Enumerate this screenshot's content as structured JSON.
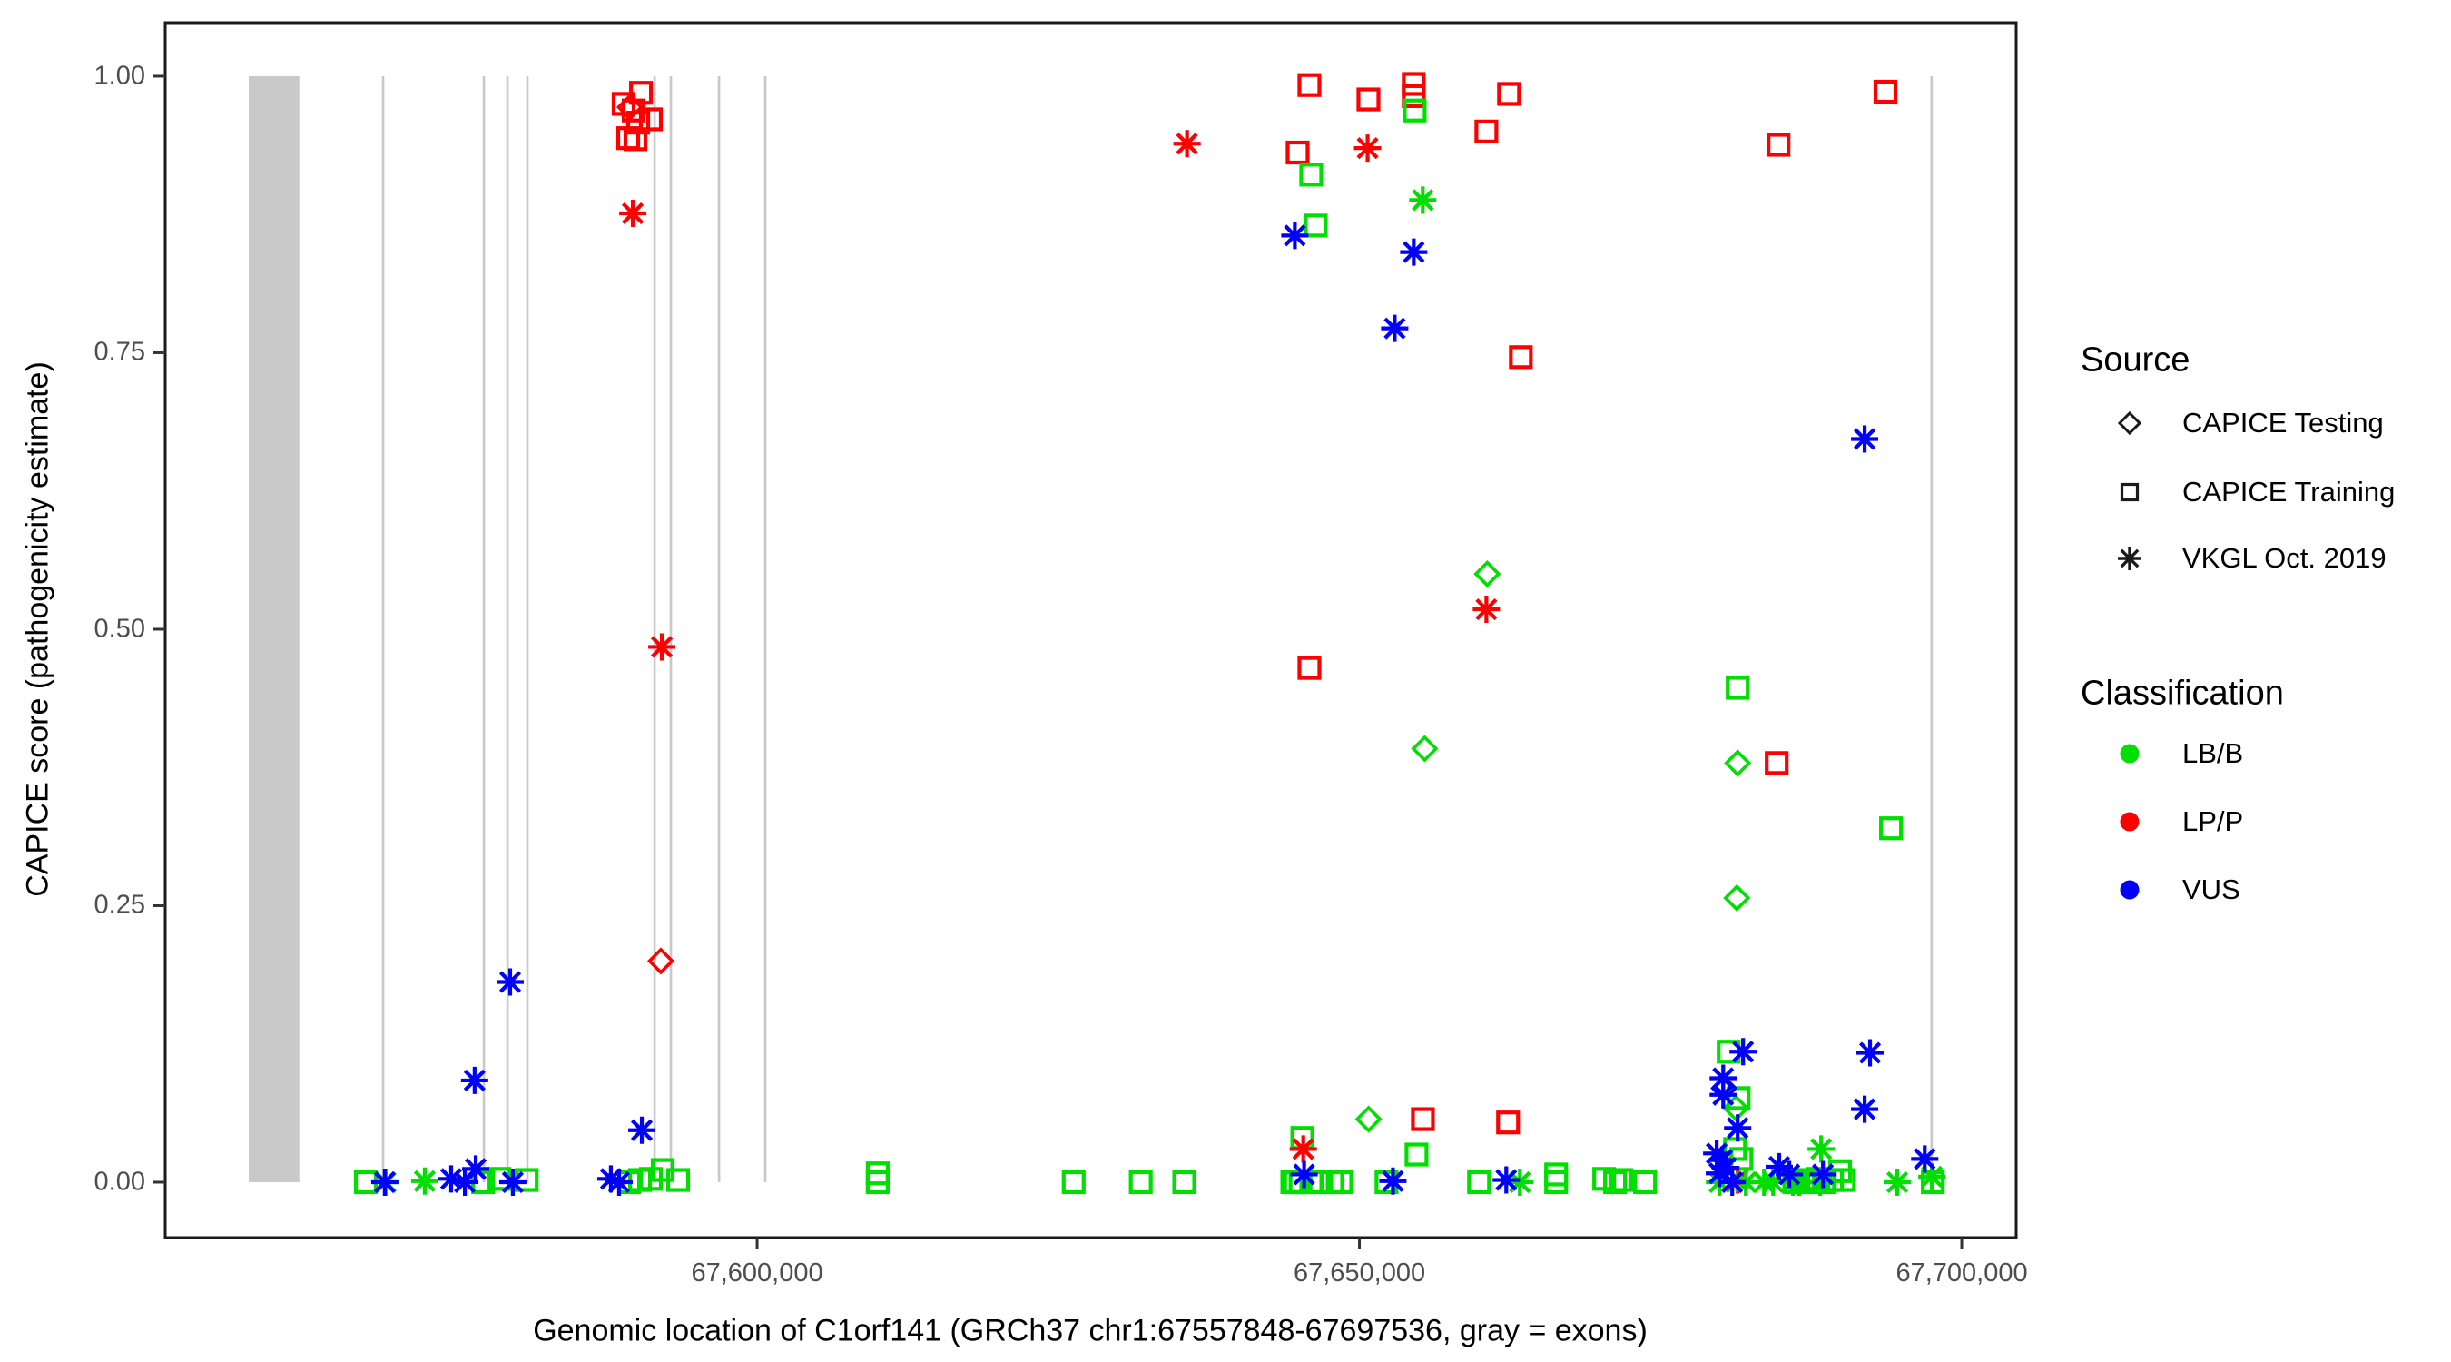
{
  "legend": {
    "source": {
      "title": "Source",
      "items": [
        {
          "label": "CAPICE Testing",
          "marker": "diamond"
        },
        {
          "label": "CAPICE Training",
          "marker": "square"
        },
        {
          "label": "VKGL Oct. 2019",
          "marker": "asterisk"
        }
      ]
    },
    "classification": {
      "title": "Classification",
      "items": [
        {
          "label": "LB/B",
          "color": "#00DF00"
        },
        {
          "label": "LP/P",
          "color": "#FF0000"
        },
        {
          "label": "VUS",
          "color": "#0000FF"
        }
      ]
    }
  },
  "chart_data": {
    "type": "scatter",
    "title": "",
    "xlabel": "Genomic location of C1orf141 (GRCh37 chr1:67557848-67697536, gray = exons)",
    "ylabel": "CAPICE score (pathogenicity estimate)",
    "xlim": [
      67550864,
      67704520
    ],
    "ylim": [
      -0.0501,
      1.0484
    ],
    "grid": false,
    "legend_position": "right",
    "x_ticks": [
      {
        "value": 67600000,
        "label": "67,600,000"
      },
      {
        "value": 67650000,
        "label": "67,650,000"
      },
      {
        "value": 67700000,
        "label": "67,700,000"
      }
    ],
    "y_ticks": [
      {
        "value": 0.0,
        "label": "0.00"
      },
      {
        "value": 0.25,
        "label": "0.25"
      },
      {
        "value": 0.5,
        "label": "0.50"
      },
      {
        "value": 0.75,
        "label": "0.75"
      },
      {
        "value": 1.0,
        "label": "1.00"
      }
    ],
    "exon_color": "#C9C9C9",
    "panel_border_color": "#1A1A1A",
    "exons": [
      {
        "start": 67557800,
        "end": 67562000
      },
      {
        "start": 67568850,
        "end": 67569050
      },
      {
        "start": 67577220,
        "end": 67577420
      },
      {
        "start": 67579180,
        "end": 67579380
      },
      {
        "start": 67580830,
        "end": 67581030
      },
      {
        "start": 67591390,
        "end": 67591590
      },
      {
        "start": 67592740,
        "end": 67592940
      },
      {
        "start": 67596740,
        "end": 67596940
      },
      {
        "start": 67600580,
        "end": 67600780
      },
      {
        "start": 67697400,
        "end": 67697600
      }
    ],
    "series": [
      {
        "name": "CAPICE Training / LP/P",
        "source": "CAPICE Training",
        "classification": "LP/P",
        "marker": "square",
        "color": "#FF0000",
        "points": [
          [
            67588920,
            0.975
          ],
          [
            67589300,
            0.944
          ],
          [
            67589750,
            0.969
          ],
          [
            67589900,
            0.943
          ],
          [
            67590130,
            0.958
          ],
          [
            67590360,
            0.985
          ],
          [
            67591180,
            0.961
          ],
          [
            67645850,
            0.992
          ],
          [
            67650750,
            0.979
          ],
          [
            67654510,
            0.993
          ],
          [
            67654510,
            0.982
          ],
          [
            67662420,
            0.984
          ],
          [
            67660540,
            0.95
          ],
          [
            67644870,
            0.931
          ],
          [
            67663400,
            0.746
          ],
          [
            67645850,
            0.465
          ],
          [
            67684640,
            0.379
          ],
          [
            67693670,
            0.986
          ],
          [
            67684790,
            0.938
          ],
          [
            67655270,
            0.057
          ],
          [
            67662340,
            0.054
          ]
        ]
      },
      {
        "name": "CAPICE Training / LB/B",
        "source": "CAPICE Training",
        "classification": "LB/B",
        "marker": "square",
        "color": "#00DF00",
        "points": [
          [
            67654590,
            0.969
          ],
          [
            67646000,
            0.911
          ],
          [
            67646370,
            0.865
          ],
          [
            67681400,
            0.447
          ],
          [
            67694130,
            0.32
          ],
          [
            67680650,
            0.118
          ],
          [
            67681480,
            0.076
          ],
          [
            67681180,
            0.03
          ],
          [
            67681710,
            0.021
          ],
          [
            67645260,
            0.04
          ],
          [
            67654740,
            0.025
          ],
          [
            67567520,
            0.0
          ],
          [
            67577250,
            0.0
          ],
          [
            67578610,
            0.003
          ],
          [
            67580870,
            0.002
          ],
          [
            67589380,
            0.0
          ],
          [
            67590280,
            0.002
          ],
          [
            67591180,
            0.003
          ],
          [
            67592160,
            0.011
          ],
          [
            67593440,
            0.002
          ],
          [
            67610010,
            0.008
          ],
          [
            67610010,
            0.0
          ],
          [
            67626280,
            0.0
          ],
          [
            67631850,
            0.0
          ],
          [
            67635460,
            0.0
          ],
          [
            67644430,
            0.0
          ],
          [
            67644660,
            0.0
          ],
          [
            67645110,
            0.0
          ],
          [
            67646010,
            0.0
          ],
          [
            67646540,
            0.0
          ],
          [
            67647740,
            0.0
          ],
          [
            67648490,
            0.0
          ],
          [
            67652250,
            0.0
          ],
          [
            67659930,
            0.0
          ],
          [
            67666330,
            0.007
          ],
          [
            67666330,
            0.0
          ],
          [
            67670320,
            0.003
          ],
          [
            67671220,
            0.0
          ],
          [
            67671750,
            0.002
          ],
          [
            67673710,
            0.0
          ],
          [
            67686100,
            0.0
          ],
          [
            67686900,
            0.002
          ],
          [
            67687500,
            0.0
          ],
          [
            67688100,
            0.003
          ],
          [
            67688630,
            0.0
          ],
          [
            67689230,
            0.002
          ],
          [
            67689900,
            0.01
          ],
          [
            67690230,
            0.002
          ],
          [
            67697600,
            0.0
          ]
        ]
      },
      {
        "name": "CAPICE Testing / LP/P",
        "source": "CAPICE Testing",
        "classification": "LP/P",
        "marker": "diamond",
        "color": "#FF0000",
        "points": [
          [
            67589450,
            0.972
          ],
          [
            67592010,
            0.2
          ]
        ]
      },
      {
        "name": "CAPICE Testing / LB/B",
        "source": "CAPICE Testing",
        "classification": "LB/B",
        "marker": "diamond",
        "color": "#00DF00",
        "points": [
          [
            67660610,
            0.55
          ],
          [
            67655420,
            0.392
          ],
          [
            67681400,
            0.379
          ],
          [
            67681330,
            0.257
          ],
          [
            67650760,
            0.057
          ],
          [
            67681250,
            0.067
          ]
        ]
      },
      {
        "name": "CAPICE Testing / VUS",
        "source": "CAPICE Testing",
        "classification": "VUS",
        "marker": "diamond",
        "color": "#0000FF",
        "points": [
          [
            67680270,
            0.085
          ]
        ]
      },
      {
        "name": "VKGL Oct. 2019 / LP/P",
        "source": "VKGL Oct. 2019",
        "classification": "LP/P",
        "marker": "asterisk",
        "color": "#FF0000",
        "points": [
          [
            67589680,
            0.876
          ],
          [
            67592090,
            0.484
          ],
          [
            67635690,
            0.939
          ],
          [
            67650680,
            0.935
          ],
          [
            67660540,
            0.518
          ],
          [
            67645340,
            0.03
          ],
          [
            67681400,
            0.002
          ]
        ]
      },
      {
        "name": "VKGL Oct. 2019 / LB/B",
        "source": "VKGL Oct. 2019",
        "classification": "LB/B",
        "marker": "asterisk",
        "color": "#00DF00",
        "points": [
          [
            67655260,
            0.888
          ],
          [
            67569170,
            0.0
          ],
          [
            67572410,
            0.001
          ],
          [
            67688330,
            0.03
          ],
          [
            67679890,
            0.0
          ],
          [
            67682080,
            0.0
          ],
          [
            67683590,
            0.0
          ],
          [
            67684340,
            0.0
          ],
          [
            67685980,
            0.0
          ],
          [
            67686510,
            0.0
          ],
          [
            67688250,
            0.0
          ],
          [
            67694650,
            0.0
          ],
          [
            67697520,
            0.005
          ],
          [
            67663320,
            0.0
          ]
        ]
      },
      {
        "name": "VKGL Oct. 2019 / VUS",
        "source": "VKGL Oct. 2019",
        "classification": "VUS",
        "marker": "asterisk",
        "color": "#0000FF",
        "points": [
          [
            67579500,
            0.181
          ],
          [
            67576550,
            0.092
          ],
          [
            67590430,
            0.047
          ],
          [
            67644640,
            0.856
          ],
          [
            67654510,
            0.841
          ],
          [
            67652930,
            0.772
          ],
          [
            67691940,
            0.672
          ],
          [
            67681850,
            0.118
          ],
          [
            67680200,
            0.094
          ],
          [
            67680200,
            0.079
          ],
          [
            67681400,
            0.049
          ],
          [
            67692390,
            0.117
          ],
          [
            67691940,
            0.066
          ],
          [
            67679660,
            0.026
          ],
          [
            67680110,
            0.02
          ],
          [
            67680410,
            0.013
          ],
          [
            67679880,
            0.008
          ],
          [
            67684850,
            0.014
          ],
          [
            67685690,
            0.007
          ],
          [
            67688480,
            0.007
          ],
          [
            67696930,
            0.021
          ],
          [
            67569090,
            0.0
          ],
          [
            67574600,
            0.003
          ],
          [
            67575740,
            0.0
          ],
          [
            67576640,
            0.012
          ],
          [
            67579720,
            0.0
          ],
          [
            67587860,
            0.003
          ],
          [
            67588540,
            0.0
          ],
          [
            67645410,
            0.007
          ],
          [
            67652780,
            0.001
          ],
          [
            67662190,
            0.002
          ],
          [
            67680950,
            0.0
          ]
        ]
      }
    ]
  }
}
